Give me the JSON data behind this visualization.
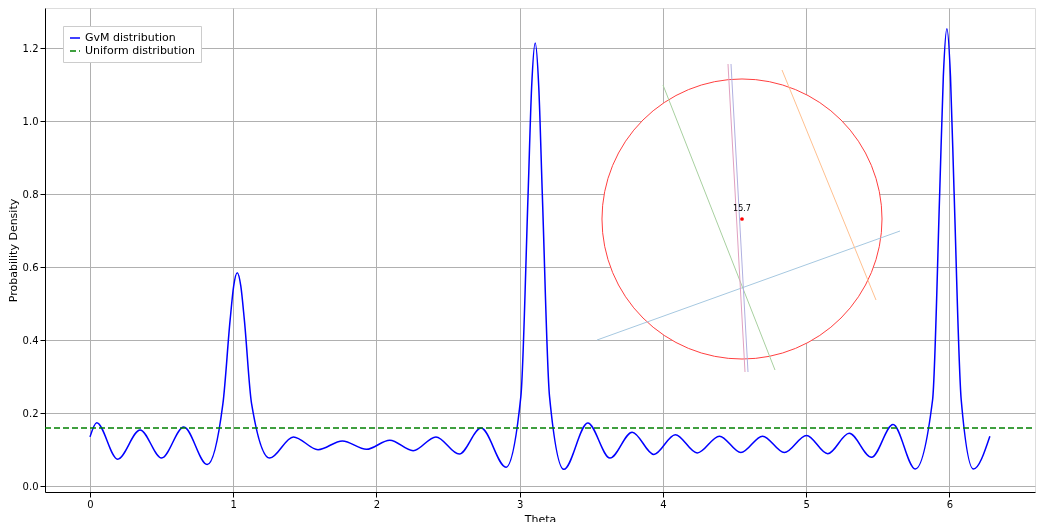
{
  "chart_data": {
    "type": "line",
    "xlabel": "Theta",
    "ylabel": "Probability Density",
    "xlim": [
      -0.314,
      6.597
    ],
    "ylim": [
      -0.016,
      1.31
    ],
    "xticks": [
      0,
      1,
      2,
      3,
      4,
      5,
      6
    ],
    "yticks": [
      {
        "value": 0,
        "label": "0.0"
      },
      {
        "value": 0.2,
        "label": "0.2"
      },
      {
        "value": 0.4,
        "label": "0.4"
      },
      {
        "value": 0.6,
        "label": "0.6"
      },
      {
        "value": 0.8,
        "label": "0.8"
      },
      {
        "value": 1.0,
        "label": "1.0"
      },
      {
        "value": 1.2,
        "label": "1.2"
      }
    ],
    "grid": true,
    "legend": "top left",
    "marker": "none",
    "annotations": [
      "15.7"
    ],
    "series": [
      {
        "name": "GvM distribution",
        "color": "#0000ff",
        "line_style": "solid",
        "x": [
          0,
          0.047,
          0.193,
          0.35,
          0.5,
          0.655,
          0.818,
          0.928,
          0.978,
          1.003,
          1.028,
          1.053,
          1.078,
          1.128,
          1.254,
          1.42,
          1.592,
          1.762,
          1.93,
          2.093,
          2.256,
          2.415,
          2.578,
          2.73,
          2.904,
          3.008,
          3.058,
          3.083,
          3.108,
          3.133,
          3.158,
          3.208,
          3.308,
          3.475,
          3.63,
          3.785,
          3.936,
          4.086,
          4.239,
          4.394,
          4.544,
          4.695,
          4.847,
          5.002,
          5.15,
          5.3,
          5.456,
          5.606,
          5.761,
          5.882,
          5.932,
          5.957,
          5.982,
          6.007,
          6.032,
          6.082,
          6.167,
          6.282
        ],
        "values": [
          0.135,
          0.174,
          0.074,
          0.154,
          0.077,
          0.162,
          0.059,
          0.226,
          0.454,
          0.548,
          0.585,
          0.548,
          0.454,
          0.226,
          0.077,
          0.135,
          0.1,
          0.124,
          0.101,
          0.126,
          0.097,
          0.135,
          0.088,
          0.159,
          0.052,
          0.246,
          0.796,
          1.092,
          1.214,
          1.092,
          0.796,
          0.246,
          0.046,
          0.173,
          0.077,
          0.148,
          0.087,
          0.141,
          0.091,
          0.137,
          0.092,
          0.137,
          0.092,
          0.139,
          0.089,
          0.145,
          0.079,
          0.169,
          0.047,
          0.236,
          0.807,
          1.122,
          1.253,
          1.122,
          0.807,
          0.236,
          0.047,
          0.137
        ]
      },
      {
        "name": "Uniform distribution",
        "color": "#008000",
        "line_style": "dashed",
        "x": [
          -0.314,
          6.597
        ],
        "values": [
          0.159,
          0.159
        ]
      }
    ]
  }
}
